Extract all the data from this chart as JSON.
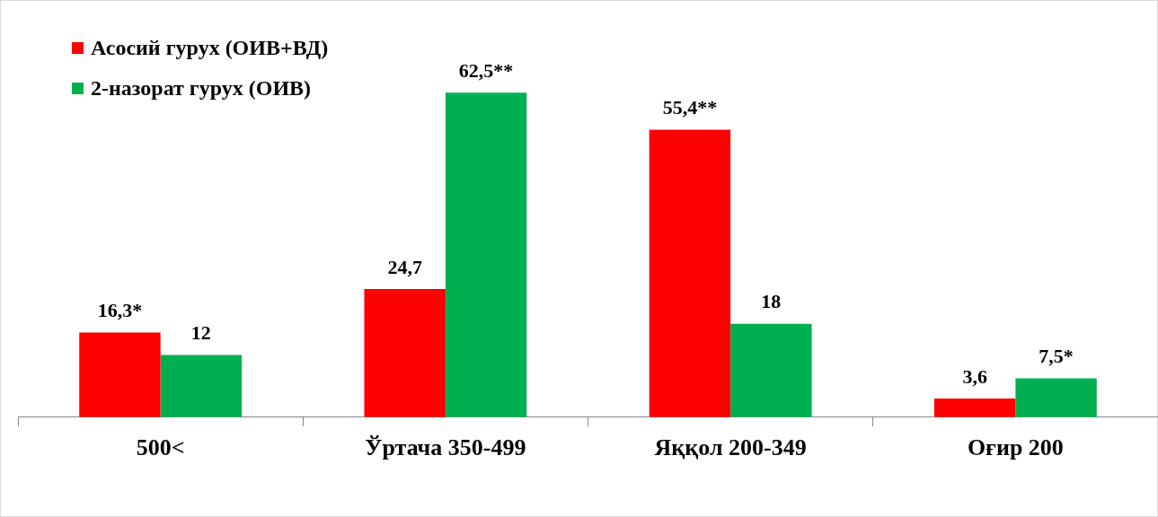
{
  "chart_data": {
    "type": "bar",
    "categories": [
      "500<",
      "Ўртача 350-499",
      "Яққол 200-349",
      "Оғир 200"
    ],
    "series": [
      {
        "name": "Асосий гурух (ОИВ+ВД)",
        "color": "#ff0000",
        "values": [
          16.3,
          24.7,
          55.4,
          3.6
        ],
        "value_labels": [
          "16,3*",
          "24,7",
          "55,4**",
          "3,6"
        ]
      },
      {
        "name": "2-назорат гурух (ОИВ)",
        "color": "#00b050",
        "values": [
          12,
          62.5,
          18,
          7.5
        ],
        "value_labels": [
          "12",
          "62,5**",
          "18",
          "7,5*"
        ]
      }
    ],
    "legend": "top left",
    "grid": false
  }
}
